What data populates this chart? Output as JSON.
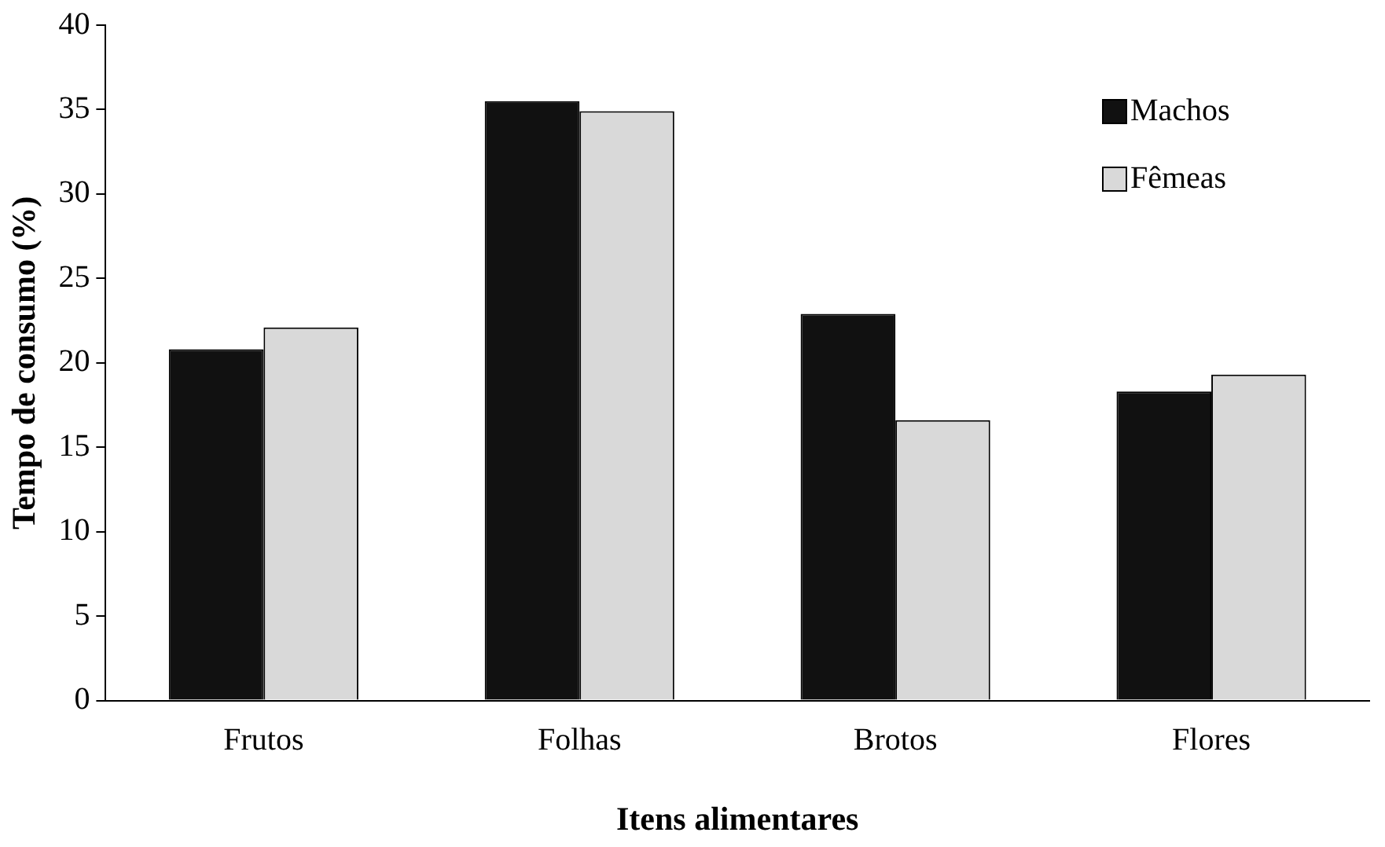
{
  "chart_data": {
    "type": "bar",
    "xlabel": "Itens alimentares",
    "ylabel": "Tempo de consumo (%)",
    "categories": [
      "Frutos",
      "Folhas",
      "Brotos",
      "Flores"
    ],
    "series": [
      {
        "name": "Machos",
        "color": "#111111",
        "values": [
          20.8,
          35.5,
          22.9,
          18.3
        ]
      },
      {
        "name": "Fêmeas",
        "color": "#d9d9d9",
        "values": [
          22.1,
          34.9,
          16.6,
          19.3
        ]
      }
    ],
    "ylim": [
      0,
      40
    ],
    "yticks": [
      0,
      5,
      10,
      15,
      20,
      25,
      30,
      35,
      40
    ],
    "grid": false,
    "legend": "top right"
  }
}
